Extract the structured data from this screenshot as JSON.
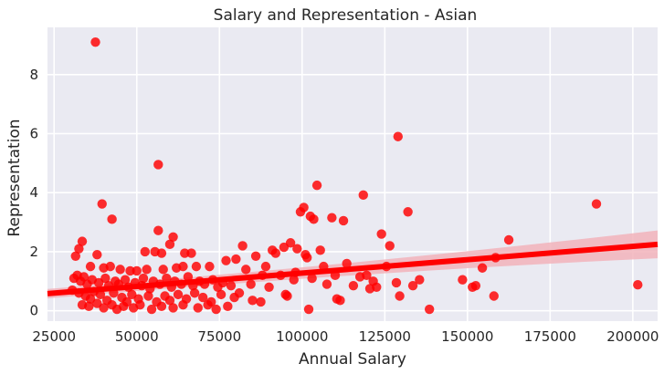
{
  "chart_data": {
    "type": "scatter",
    "title": "Salary and Representation - Asian",
    "xlabel": "Annual Salary",
    "ylabel": "Representation",
    "xlim": [
      23000,
      207500
    ],
    "ylim": [
      -0.35,
      9.6
    ],
    "xticks": [
      25000,
      50000,
      75000,
      100000,
      125000,
      150000,
      175000,
      200000
    ],
    "yticks": [
      0,
      2,
      4,
      6,
      8
    ],
    "grid": true,
    "background": "#eaeaf2",
    "point_color": "#ff0000",
    "band_color": "#f2b3bb",
    "regression": {
      "x0": 23000,
      "y0": 0.58,
      "x1": 207500,
      "y1": 2.25,
      "ci_low0": 0.42,
      "ci_high0": 0.74,
      "ci_low1": 1.78,
      "ci_high1": 2.72
    },
    "points": [
      [
        37500,
        9.1
      ],
      [
        56500,
        4.95
      ],
      [
        39500,
        3.62
      ],
      [
        42500,
        3.1
      ],
      [
        56500,
        2.72
      ],
      [
        61000,
        2.5
      ],
      [
        32500,
        2.1
      ],
      [
        33500,
        2.35
      ],
      [
        31500,
        1.85
      ],
      [
        38000,
        1.9
      ],
      [
        52500,
        2.0
      ],
      [
        55500,
        2.0
      ],
      [
        57500,
        1.95
      ],
      [
        64500,
        1.95
      ],
      [
        66500,
        1.95
      ],
      [
        60000,
        2.25
      ],
      [
        36000,
        1.5
      ],
      [
        40000,
        1.45
      ],
      [
        42000,
        1.5
      ],
      [
        45000,
        1.4
      ],
      [
        48000,
        1.35
      ],
      [
        50000,
        1.35
      ],
      [
        53000,
        1.4
      ],
      [
        58000,
        1.4
      ],
      [
        62000,
        1.45
      ],
      [
        64000,
        1.5
      ],
      [
        68000,
        1.5
      ],
      [
        72000,
        1.5
      ],
      [
        77000,
        1.7
      ],
      [
        31000,
        1.1
      ],
      [
        32000,
        1.2
      ],
      [
        33000,
        1.0
      ],
      [
        34000,
        1.15
      ],
      [
        35000,
        0.9
      ],
      [
        36500,
        1.05
      ],
      [
        38500,
        0.95
      ],
      [
        40500,
        1.1
      ],
      [
        41500,
        0.85
      ],
      [
        43500,
        1.0
      ],
      [
        44500,
        0.9
      ],
      [
        46500,
        1.05
      ],
      [
        47500,
        0.8
      ],
      [
        49500,
        0.95
      ],
      [
        51500,
        0.85
      ],
      [
        52000,
        1.1
      ],
      [
        54000,
        0.75
      ],
      [
        55000,
        1.0
      ],
      [
        57000,
        0.9
      ],
      [
        59000,
        1.1
      ],
      [
        60500,
        0.8
      ],
      [
        61500,
        1.0
      ],
      [
        63500,
        0.9
      ],
      [
        65500,
        1.15
      ],
      [
        67000,
        0.85
      ],
      [
        69000,
        1.0
      ],
      [
        70500,
        0.9
      ],
      [
        73000,
        1.05
      ],
      [
        74500,
        0.8
      ],
      [
        76000,
        0.95
      ],
      [
        78500,
        0.85
      ],
      [
        30500,
        0.7
      ],
      [
        32500,
        0.6
      ],
      [
        34500,
        0.5
      ],
      [
        36000,
        0.4
      ],
      [
        37000,
        0.65
      ],
      [
        39000,
        0.55
      ],
      [
        41000,
        0.35
      ],
      [
        43000,
        0.6
      ],
      [
        45500,
        0.45
      ],
      [
        47000,
        0.3
      ],
      [
        48500,
        0.55
      ],
      [
        50500,
        0.4
      ],
      [
        53500,
        0.5
      ],
      [
        56000,
        0.3
      ],
      [
        58500,
        0.5
      ],
      [
        60000,
        0.35
      ],
      [
        62500,
        0.55
      ],
      [
        65000,
        0.4
      ],
      [
        67500,
        0.6
      ],
      [
        70000,
        0.45
      ],
      [
        72500,
        0.3
      ],
      [
        75500,
        0.55
      ],
      [
        79500,
        0.45
      ],
      [
        33500,
        0.2
      ],
      [
        35500,
        0.15
      ],
      [
        38000,
        0.25
      ],
      [
        40000,
        0.1
      ],
      [
        42500,
        0.2
      ],
      [
        44000,
        0.05
      ],
      [
        46000,
        0.15
      ],
      [
        49000,
        0.1
      ],
      [
        51000,
        0.2
      ],
      [
        54500,
        0.05
      ],
      [
        57500,
        0.15
      ],
      [
        61000,
        0.1
      ],
      [
        64000,
        0.2
      ],
      [
        68500,
        0.1
      ],
      [
        71500,
        0.2
      ],
      [
        74000,
        0.05
      ],
      [
        77500,
        0.15
      ],
      [
        81000,
        0.6
      ],
      [
        83000,
        1.4
      ],
      [
        84500,
        0.9
      ],
      [
        86000,
        1.85
      ],
      [
        87500,
        0.3
      ],
      [
        82000,
        2.2
      ],
      [
        85000,
        0.35
      ],
      [
        89000,
        1.5
      ],
      [
        90000,
        0.8
      ],
      [
        91000,
        2.05
      ],
      [
        92000,
        1.95
      ],
      [
        93500,
        1.2
      ],
      [
        94500,
        2.15
      ],
      [
        95500,
        0.5
      ],
      [
        96500,
        2.3
      ],
      [
        97500,
        1.05
      ],
      [
        98500,
        2.1
      ],
      [
        99500,
        3.35
      ],
      [
        100500,
        3.5
      ],
      [
        101500,
        1.8
      ],
      [
        102500,
        3.2
      ],
      [
        103500,
        3.1
      ],
      [
        104500,
        4.25
      ],
      [
        105500,
        2.05
      ],
      [
        106500,
        1.5
      ],
      [
        98000,
        1.3
      ],
      [
        101000,
        1.9
      ],
      [
        103000,
        1.1
      ],
      [
        102000,
        0.05
      ],
      [
        107500,
        0.9
      ],
      [
        109000,
        3.15
      ],
      [
        110000,
        1.2
      ],
      [
        111500,
        0.35
      ],
      [
        110500,
        0.4
      ],
      [
        112500,
        3.05
      ],
      [
        113500,
        1.6
      ],
      [
        115500,
        0.85
      ],
      [
        117500,
        1.15
      ],
      [
        118500,
        3.92
      ],
      [
        119500,
        1.2
      ],
      [
        120500,
        0.75
      ],
      [
        121500,
        1.0
      ],
      [
        122500,
        0.8
      ],
      [
        124000,
        2.6
      ],
      [
        125500,
        1.5
      ],
      [
        126500,
        2.2
      ],
      [
        128500,
        0.95
      ],
      [
        129000,
        5.9
      ],
      [
        129500,
        0.5
      ],
      [
        132000,
        3.35
      ],
      [
        133500,
        0.85
      ],
      [
        135500,
        1.05
      ],
      [
        138500,
        0.05
      ],
      [
        148500,
        1.05
      ],
      [
        151500,
        0.8
      ],
      [
        152500,
        0.85
      ],
      [
        154500,
        1.45
      ],
      [
        158500,
        1.8
      ],
      [
        158000,
        0.5
      ],
      [
        162500,
        2.4
      ],
      [
        189000,
        3.62
      ],
      [
        201500,
        0.88
      ],
      [
        95000,
        0.55
      ],
      [
        88000,
        1.2
      ],
      [
        80000,
        1.75
      ]
    ]
  }
}
